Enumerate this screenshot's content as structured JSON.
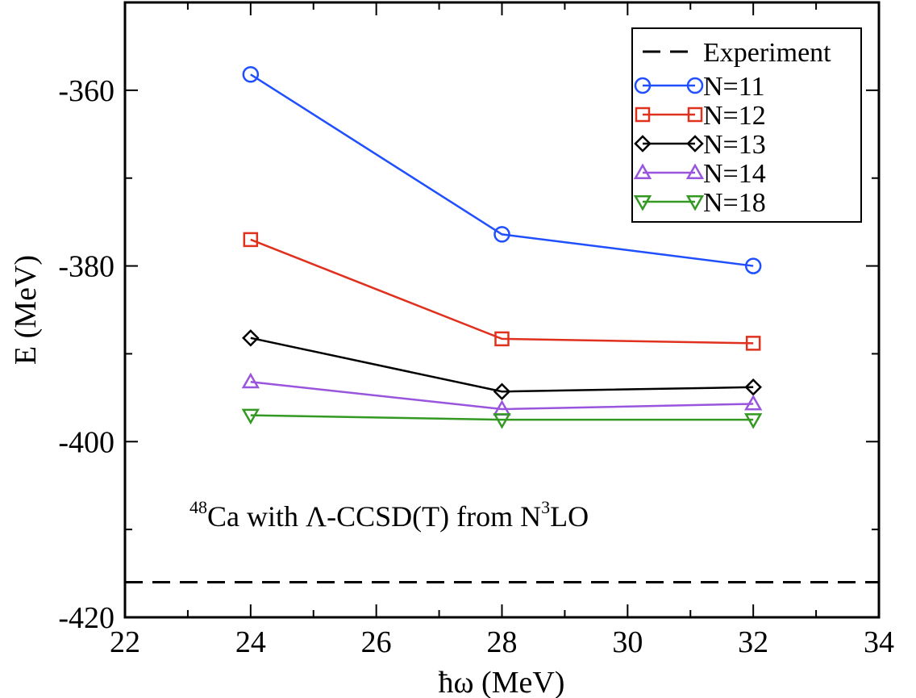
{
  "chart_data": {
    "type": "line",
    "title": "",
    "xlabel": "ħω (MeV)",
    "ylabel": "E (MeV)",
    "xlim": [
      22,
      34
    ],
    "ylim": [
      -420,
      -350
    ],
    "xticks": [
      22,
      24,
      26,
      28,
      30,
      32,
      34
    ],
    "xtick_labels": [
      "22",
      "24",
      "26",
      "28",
      "30",
      "32",
      "34"
    ],
    "yticks": [
      -360,
      -380,
      -400,
      -420
    ],
    "ytick_labels": [
      "-360",
      "-380",
      "-400",
      "-420"
    ],
    "x": [
      24,
      28,
      32
    ],
    "series": [
      {
        "name": "N=11",
        "values": [
          -358.2,
          -376.4,
          -380.0
        ],
        "color": "#1f4fff",
        "marker": "circle"
      },
      {
        "name": "N=12",
        "values": [
          -377.0,
          -388.3,
          -388.8
        ],
        "color": "#e0301e",
        "marker": "square"
      },
      {
        "name": "N=13",
        "values": [
          -388.2,
          -394.3,
          -393.8
        ],
        "color": "#000000",
        "marker": "diamond"
      },
      {
        "name": "N=14",
        "values": [
          -393.2,
          -396.3,
          -395.7
        ],
        "color": "#9955dd",
        "marker": "triangle-up"
      },
      {
        "name": "N=18",
        "values": [
          -397.0,
          -397.5,
          -397.5
        ],
        "color": "#339922",
        "marker": "triangle-down"
      }
    ],
    "reference_line": {
      "name": "Experiment",
      "value": -416.0,
      "style": "dashed",
      "color": "#000000"
    },
    "legend_position": "top-right",
    "annotation": {
      "prefix_sup": "48",
      "main": "Ca with Λ-CCSD(T) from N",
      "sup": "3",
      "suffix": "LO"
    }
  }
}
